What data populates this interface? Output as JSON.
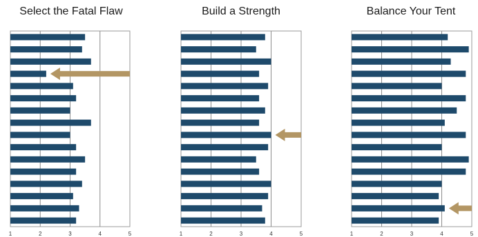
{
  "chart_data": [
    {
      "type": "bar",
      "title": "Select the Fatal Flaw",
      "orientation": "horizontal",
      "xlim": [
        1,
        5
      ],
      "xticks": [
        "1",
        "2",
        "3",
        "4",
        "5"
      ],
      "grid": true,
      "values": [
        3.5,
        3.4,
        3.7,
        2.2,
        3.1,
        3.2,
        3.0,
        3.7,
        3.0,
        3.2,
        3.5,
        3.2,
        3.4,
        3.1,
        3.3,
        3.2
      ],
      "bar_color": "#1e4a6b",
      "highlight_index": 3,
      "arrow_color": "#b39664"
    },
    {
      "type": "bar",
      "title": "Build a Strength",
      "orientation": "horizontal",
      "xlim": [
        1,
        5
      ],
      "xticks": [
        "1",
        "2",
        "3",
        "4",
        "5"
      ],
      "grid": true,
      "values": [
        3.8,
        3.5,
        4.0,
        3.6,
        3.9,
        3.6,
        3.8,
        3.6,
        4.0,
        3.9,
        3.5,
        3.6,
        4.0,
        3.9,
        3.7,
        3.8
      ],
      "bar_color": "#1e4a6b",
      "highlight_index": 8,
      "arrow_color": "#b39664"
    },
    {
      "type": "bar",
      "title": "Balance Your Tent",
      "orientation": "horizontal",
      "xlim": [
        1,
        5
      ],
      "xticks": [
        "1",
        "2",
        "3",
        "4",
        "5"
      ],
      "grid": true,
      "values": [
        4.2,
        4.9,
        4.3,
        4.8,
        4.0,
        4.8,
        4.5,
        4.1,
        4.8,
        4.0,
        4.9,
        4.8,
        4.0,
        3.9,
        4.1,
        3.9
      ],
      "bar_color": "#1e4a6b",
      "highlight_index": 14,
      "arrow_color": "#b39664"
    }
  ]
}
